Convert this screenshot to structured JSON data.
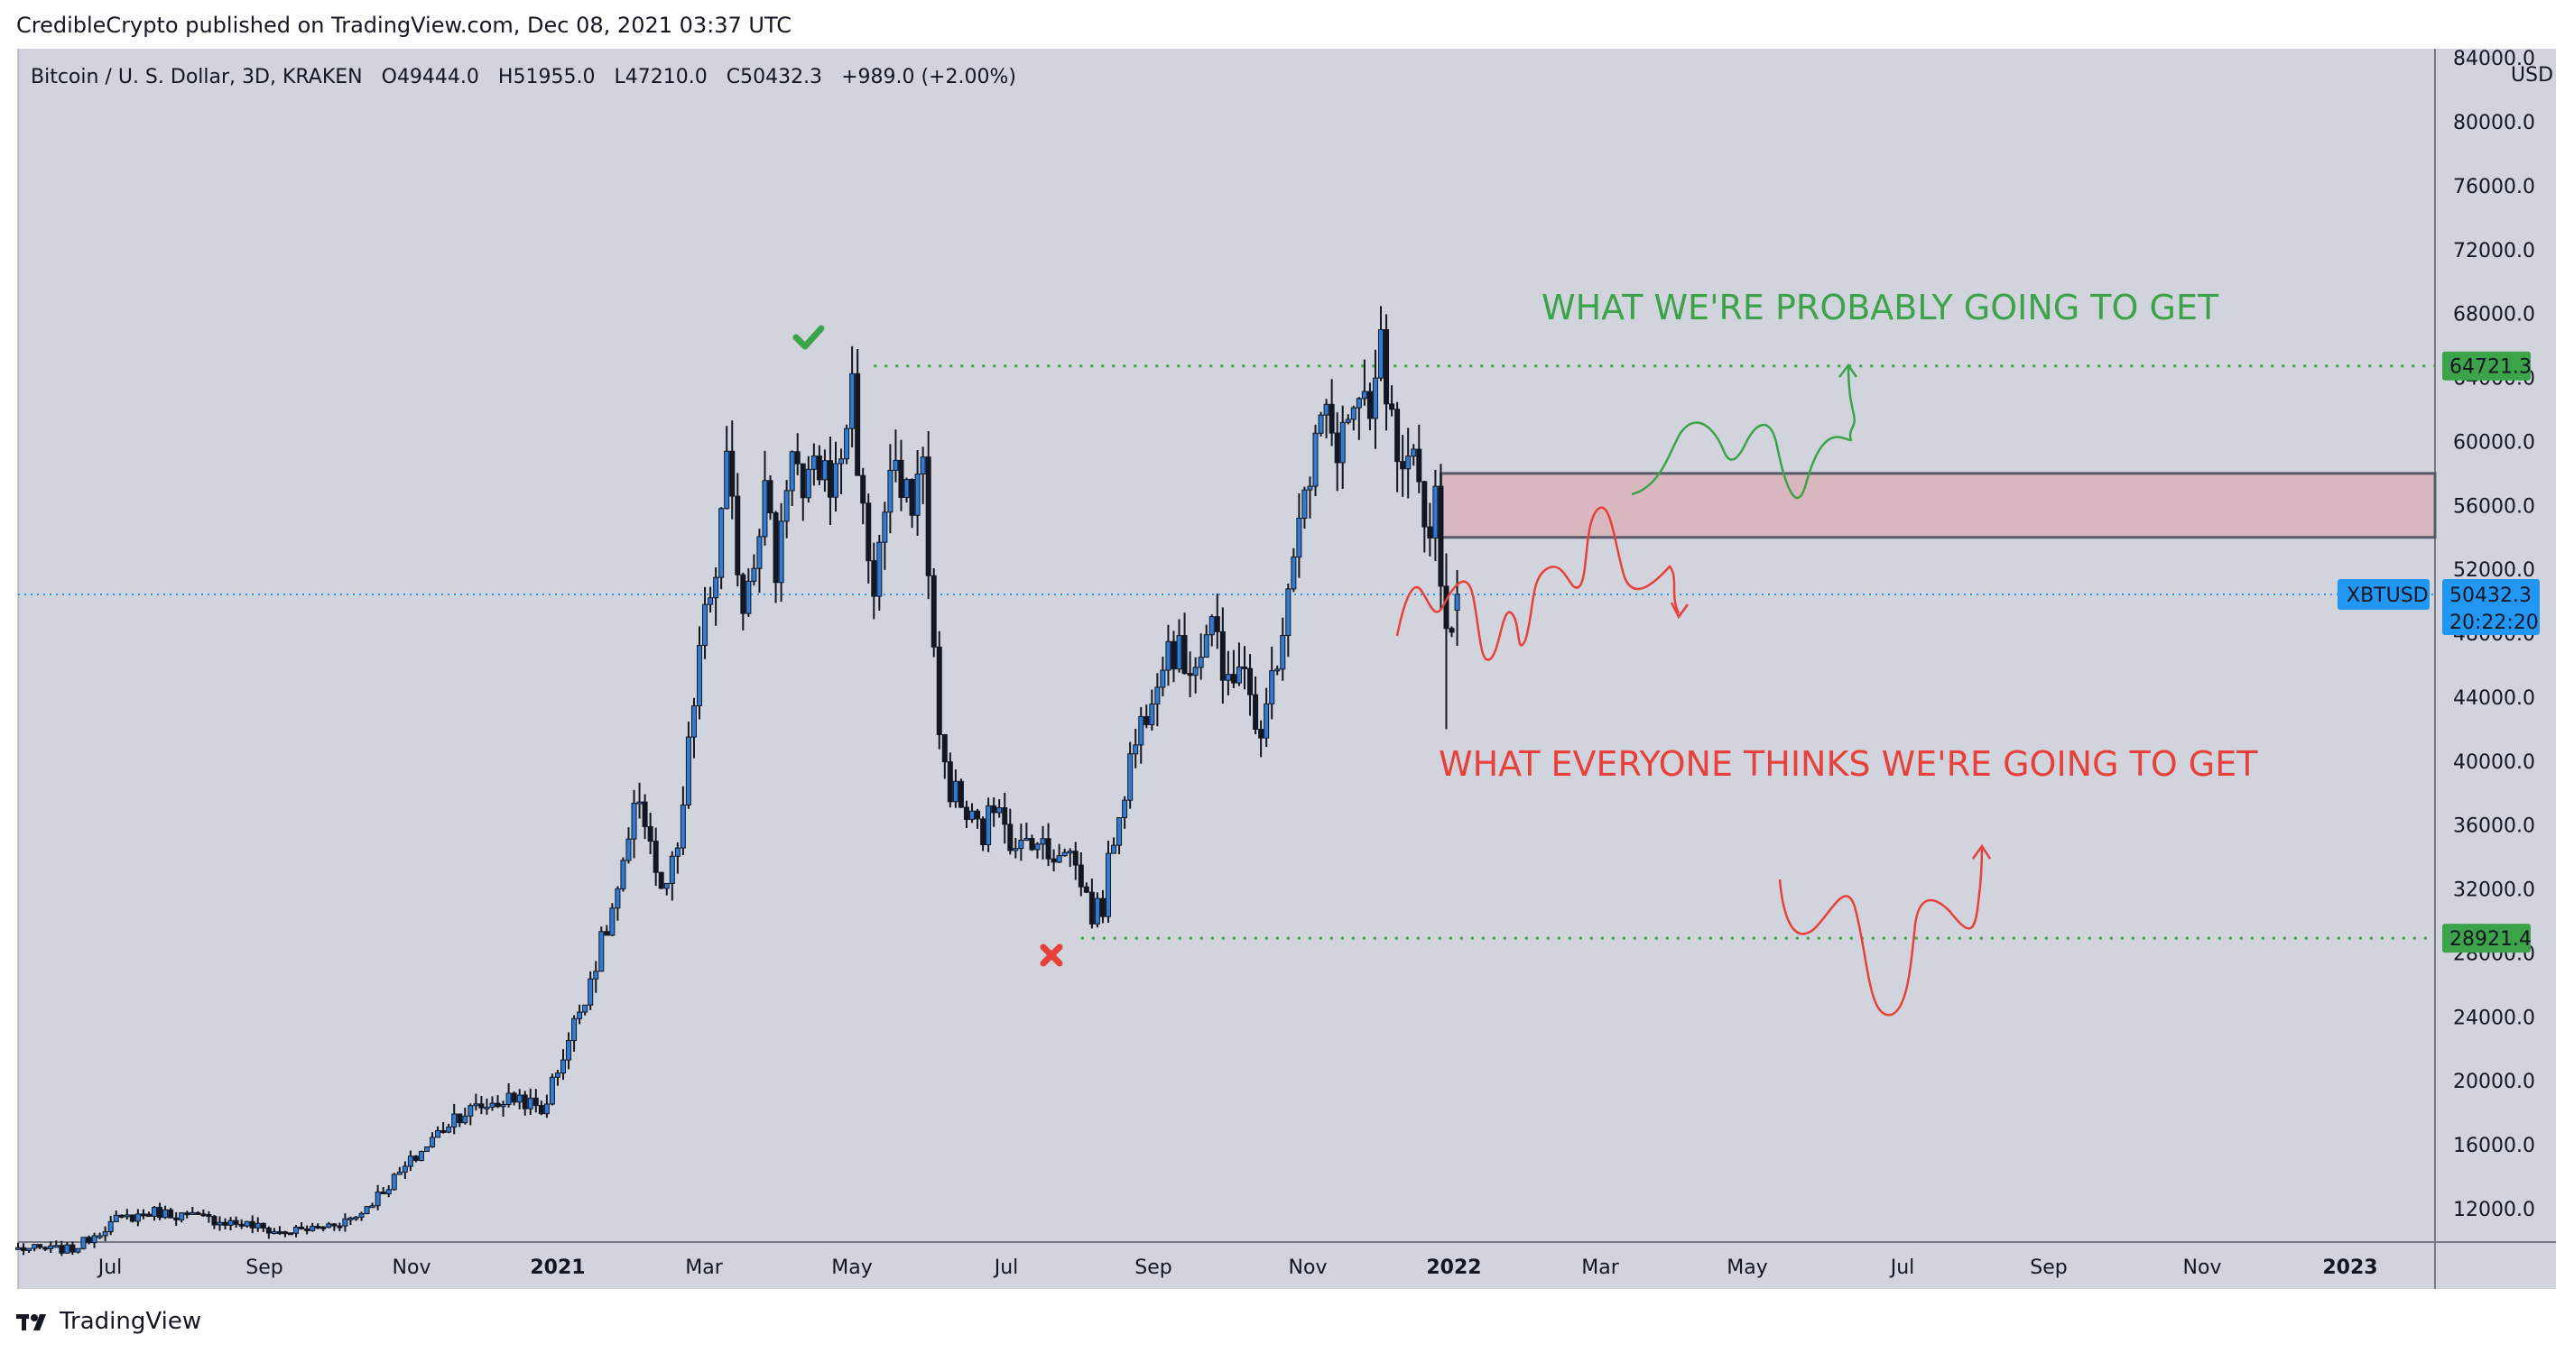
{
  "header": {
    "published": "CredibleCrypto published on TradingView.com, Dec 08, 2021 03:37 UTC"
  },
  "footer": {
    "brand": "TradingView"
  },
  "symbol_line": {
    "name": "Bitcoin / U. S. Dollar, 3D, KRAKEN",
    "o_label": "O",
    "o": "49444.0",
    "h_label": "H",
    "h": "51955.0",
    "l_label": "L",
    "l": "47210.0",
    "c_label": "C",
    "c": "50432.3",
    "change": "+989.0 (+2.00%)"
  },
  "colors": {
    "background": "#d1d4dc",
    "up": "#2f7bd6",
    "down": "#131722",
    "green": "#3da34a",
    "red": "#e8403b",
    "zone_fill": "#d9b7bf",
    "price_tag": "#2196f3",
    "current_line": "#2196f3"
  },
  "annotations": {
    "top_text": "WHAT WE'RE PROBABLY GOING TO GET",
    "bottom_text": "WHAT EVERYONE THINKS WE'RE GOING TO GET",
    "check_icon": "checkmark-icon",
    "cross_icon": "cross-icon"
  },
  "chart_data": {
    "type": "candlestick",
    "title": "Bitcoin / U. S. Dollar, 3D, KRAKEN",
    "y_axis_unit": "USD",
    "y_axis_position": "right",
    "y_ticks": [
      "12000.0",
      "16000.0",
      "20000.0",
      "24000.0",
      "28000.0",
      "32000.0",
      "36000.0",
      "40000.0",
      "44000.0",
      "48000.0",
      "52000.0",
      "56000.0",
      "60000.0",
      "64000.0",
      "68000.0",
      "72000.0",
      "76000.0",
      "80000.0",
      "84000.0"
    ],
    "x_ticks": [
      "Jul",
      "Sep",
      "Nov",
      "2021",
      "Mar",
      "May",
      "Jul",
      "Sep",
      "Nov",
      "2022",
      "Mar",
      "May",
      "Jul",
      "Sep",
      "Nov",
      "2023"
    ],
    "bold_x_ticks": [
      "2021",
      "2022",
      "2023"
    ],
    "ylim": [
      8000,
      84000
    ],
    "grid": false,
    "current_price": {
      "symbol": "XBTUSD",
      "value": "50432.3",
      "countdown": "20:22:20"
    },
    "levels": [
      {
        "value": "64721.3",
        "style": "dotted",
        "color": "green"
      },
      {
        "value": "28921.4",
        "style": "dotted",
        "color": "green"
      }
    ],
    "zone": {
      "top": 58000,
      "bottom": 54000
    },
    "anchors": [
      [
        0,
        9500
      ],
      [
        10,
        9450
      ],
      [
        18,
        11300
      ],
      [
        25,
        11800
      ],
      [
        32,
        11500
      ],
      [
        42,
        11000
      ],
      [
        48,
        10500
      ],
      [
        55,
        10800
      ],
      [
        62,
        11500
      ],
      [
        68,
        13500
      ],
      [
        74,
        15600
      ],
      [
        80,
        17800
      ],
      [
        86,
        18500
      ],
      [
        92,
        19000
      ],
      [
        96,
        18000
      ],
      [
        102,
        23500
      ],
      [
        108,
        29500
      ],
      [
        111,
        33000
      ],
      [
        114,
        38000
      ],
      [
        116,
        35000
      ],
      [
        118,
        31500
      ],
      [
        121,
        34000
      ],
      [
        125,
        47000
      ],
      [
        128,
        52000
      ],
      [
        130,
        58000
      ],
      [
        133,
        50000
      ],
      [
        137,
        57000
      ],
      [
        139,
        52000
      ],
      [
        142,
        60500
      ],
      [
        144,
        56000
      ],
      [
        147,
        58500
      ],
      [
        150,
        57500
      ],
      [
        153,
        63500
      ],
      [
        155,
        55000
      ],
      [
        157,
        51000
      ],
      [
        160,
        58000
      ],
      [
        163,
        56000
      ],
      [
        166,
        58500
      ],
      [
        169,
        41000
      ],
      [
        171,
        38500
      ],
      [
        174,
        36500
      ],
      [
        177,
        35500
      ],
      [
        180,
        38000
      ],
      [
        183,
        34000
      ],
      [
        186,
        35500
      ],
      [
        189,
        34000
      ],
      [
        192,
        35000
      ],
      [
        195,
        32500
      ],
      [
        197,
        30500
      ],
      [
        199,
        31000
      ],
      [
        201,
        35500
      ],
      [
        204,
        40000
      ],
      [
        207,
        43500
      ],
      [
        209,
        46000
      ],
      [
        211,
        47500
      ],
      [
        214,
        46000
      ],
      [
        217,
        47000
      ],
      [
        219,
        49000
      ],
      [
        221,
        44500
      ],
      [
        224,
        46500
      ],
      [
        227,
        42000
      ],
      [
        229,
        43000
      ],
      [
        232,
        49000
      ],
      [
        235,
        56000
      ],
      [
        237,
        57000
      ],
      [
        239,
        61500
      ],
      [
        242,
        60000
      ],
      [
        245,
        62000
      ],
      [
        248,
        61000
      ],
      [
        250,
        65500
      ],
      [
        252,
        60500
      ],
      [
        254,
        57000
      ],
      [
        256,
        58000
      ],
      [
        258,
        54500
      ],
      [
        260,
        56500
      ],
      [
        262,
        48000
      ],
      [
        263,
        49444
      ],
      [
        264,
        50432
      ]
    ],
    "ohlc_last": {
      "open": 49444.0,
      "high": 51955.0,
      "low": 47210.0,
      "close": 50432.3,
      "change": 989.0,
      "change_pct": 2.0
    }
  }
}
